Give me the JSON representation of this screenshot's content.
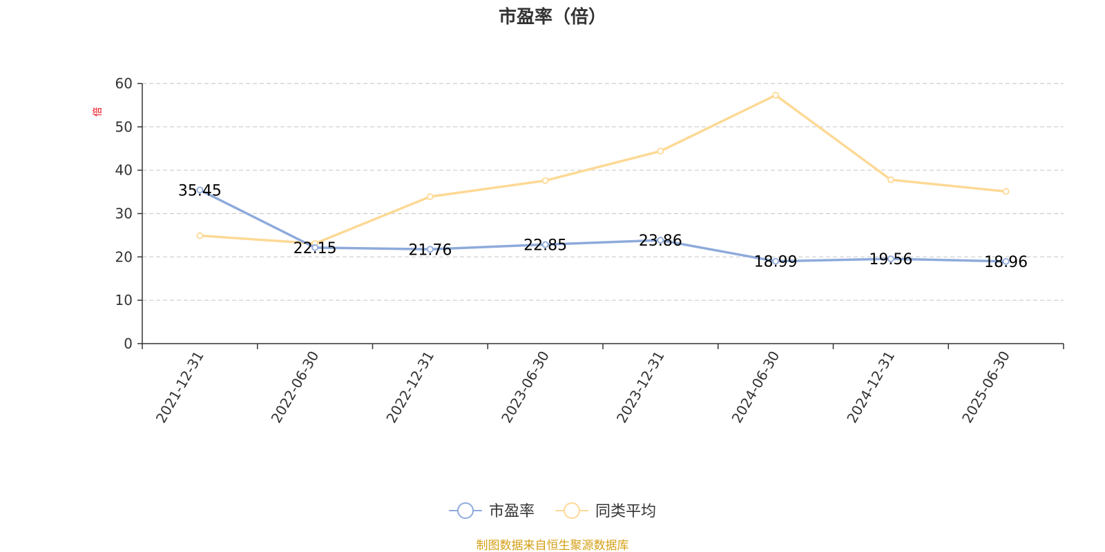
{
  "chart_data": {
    "type": "line",
    "title": "市盈率（倍）",
    "ylabel": "倍",
    "categories": [
      "2021-12-31",
      "2022-06-30",
      "2022-12-31",
      "2023-06-30",
      "2023-12-31",
      "2024-06-30",
      "2024-12-31",
      "2025-06-30"
    ],
    "ylim": [
      0,
      60
    ],
    "yticks": [
      0,
      10,
      20,
      30,
      40,
      50,
      60
    ],
    "grid": true,
    "legend_position": "bottom-center",
    "series": [
      {
        "name": "市盈率",
        "color": "#8eaadb",
        "values": [
          35.45,
          22.15,
          21.76,
          22.85,
          23.86,
          18.99,
          19.56,
          18.96
        ],
        "labels": [
          "35.45",
          "22.15",
          "21.76",
          "22.85",
          "23.86",
          "18.99",
          "19.56",
          "18.96"
        ]
      },
      {
        "name": "同类平均",
        "color": "#fdd995",
        "values": [
          24.9,
          23.1,
          33.9,
          37.6,
          44.4,
          57.3,
          37.8,
          35.1
        ]
      }
    ]
  },
  "source_note": "制图数据来自恒生聚源数据库",
  "colors": {
    "axis": "#333333",
    "grid": "#cccccc",
    "source": "#d4a017",
    "unit": "#e8000b"
  }
}
